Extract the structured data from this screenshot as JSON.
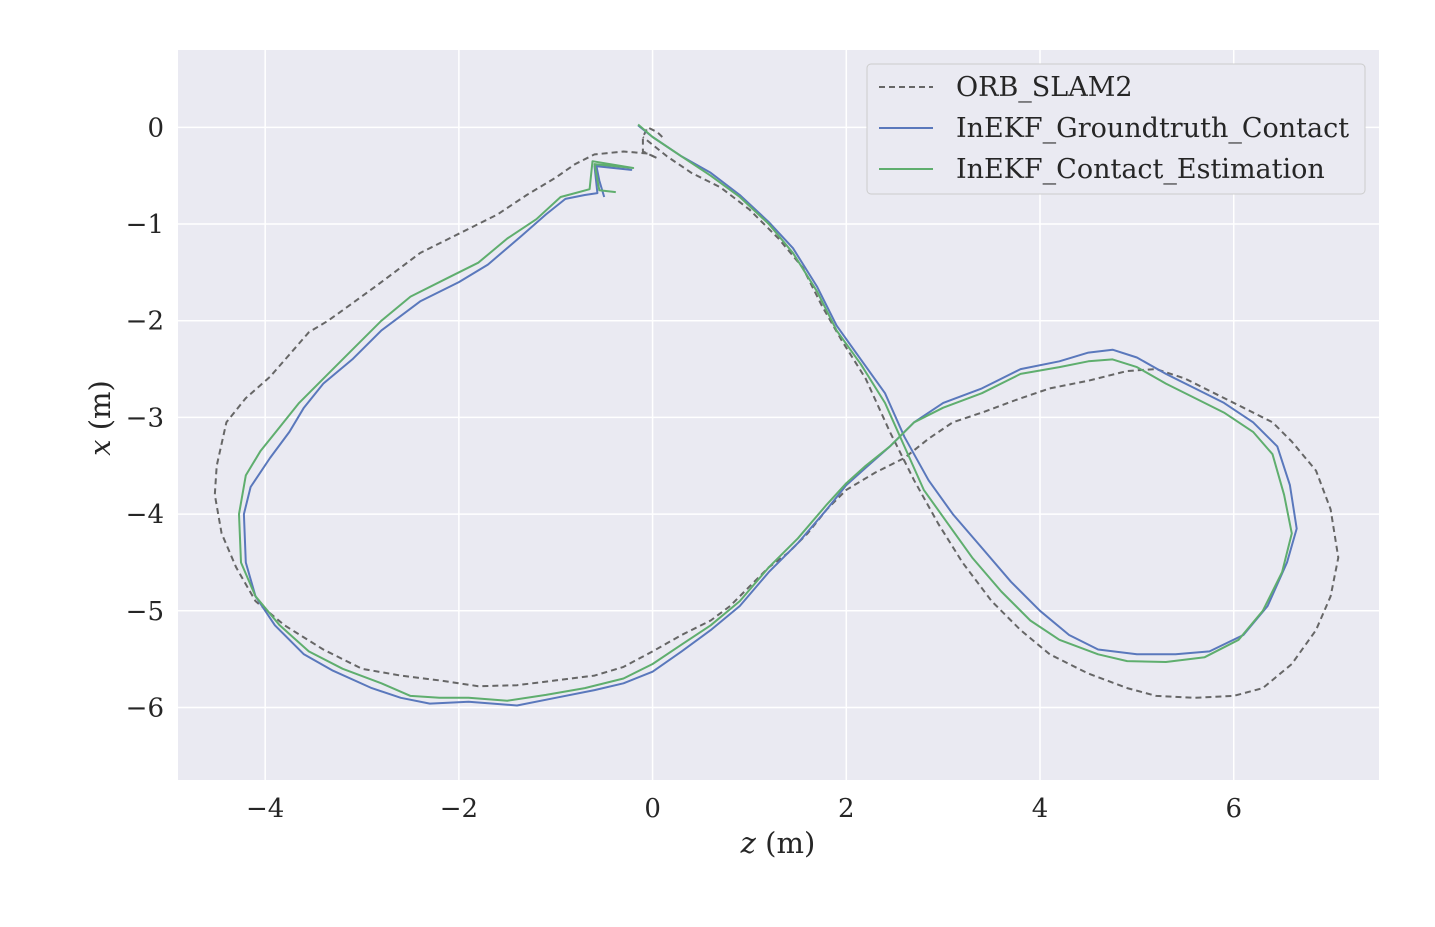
{
  "chart_data": {
    "type": "line",
    "title": "",
    "xlabel_var": "z",
    "xlabel_unit": " (m)",
    "ylabel_var": "x",
    "ylabel_unit": " (m)",
    "xlim": [
      -4.9,
      7.5
    ],
    "ylim": [
      -6.75,
      0.8
    ],
    "xticks": [
      -4,
      -2,
      0,
      2,
      4,
      6
    ],
    "yticks": [
      0,
      -1,
      -2,
      -3,
      -4,
      -5,
      -6
    ],
    "xtick_labels": [
      "−4",
      "−2",
      "0",
      "2",
      "4",
      "6"
    ],
    "ytick_labels": [
      "0",
      "−1",
      "−2",
      "−3",
      "−4",
      "−5",
      "−6"
    ],
    "grid": true,
    "legend_position": "top-right",
    "colors": {
      "background": "#eaeaf2",
      "grid": "#ffffff"
    },
    "series": [
      {
        "name": "ORB_SLAM2",
        "color": "#666666",
        "style": "dashed",
        "points": [
          [
            0.1,
            -0.1
          ],
          [
            0.05,
            -0.05
          ],
          [
            -0.05,
            0
          ],
          [
            -0.1,
            -0.1
          ],
          [
            -0.1,
            -0.25
          ],
          [
            0.05,
            -0.32
          ],
          [
            -0.05,
            -0.27
          ],
          [
            -0.3,
            -0.25
          ],
          [
            -0.6,
            -0.28
          ],
          [
            -0.8,
            -0.38
          ],
          [
            -1.0,
            -0.52
          ],
          [
            -1.3,
            -0.7
          ],
          [
            -1.6,
            -0.9
          ],
          [
            -2.0,
            -1.1
          ],
          [
            -2.4,
            -1.3
          ],
          [
            -2.8,
            -1.6
          ],
          [
            -3.1,
            -1.82
          ],
          [
            -3.35,
            -2.0
          ],
          [
            -3.55,
            -2.12
          ],
          [
            -3.75,
            -2.35
          ],
          [
            -3.95,
            -2.58
          ],
          [
            -4.2,
            -2.8
          ],
          [
            -4.4,
            -3.05
          ],
          [
            -4.5,
            -3.5
          ],
          [
            -4.52,
            -3.8
          ],
          [
            -4.45,
            -4.2
          ],
          [
            -4.3,
            -4.55
          ],
          [
            -4.1,
            -4.9
          ],
          [
            -3.8,
            -5.15
          ],
          [
            -3.4,
            -5.4
          ],
          [
            -3.0,
            -5.6
          ],
          [
            -2.6,
            -5.67
          ],
          [
            -2.2,
            -5.72
          ],
          [
            -1.8,
            -5.78
          ],
          [
            -1.4,
            -5.77
          ],
          [
            -1.0,
            -5.72
          ],
          [
            -0.6,
            -5.67
          ],
          [
            -0.3,
            -5.58
          ],
          [
            0.0,
            -5.42
          ],
          [
            0.3,
            -5.25
          ],
          [
            0.6,
            -5.1
          ],
          [
            0.8,
            -4.95
          ],
          [
            1.0,
            -4.75
          ],
          [
            1.2,
            -4.55
          ],
          [
            1.4,
            -4.4
          ],
          [
            1.6,
            -4.2
          ],
          [
            1.8,
            -3.95
          ],
          [
            2.0,
            -3.75
          ],
          [
            2.3,
            -3.57
          ],
          [
            2.6,
            -3.42
          ],
          [
            2.85,
            -3.22
          ],
          [
            3.1,
            -3.05
          ],
          [
            3.4,
            -2.95
          ],
          [
            3.75,
            -2.82
          ],
          [
            4.1,
            -2.7
          ],
          [
            4.5,
            -2.62
          ],
          [
            4.9,
            -2.52
          ],
          [
            5.2,
            -2.5
          ],
          [
            5.5,
            -2.6
          ],
          [
            5.8,
            -2.75
          ],
          [
            6.1,
            -2.9
          ],
          [
            6.4,
            -3.05
          ],
          [
            6.6,
            -3.25
          ],
          [
            6.85,
            -3.55
          ],
          [
            7.0,
            -3.95
          ],
          [
            7.08,
            -4.45
          ],
          [
            7.0,
            -4.85
          ],
          [
            6.85,
            -5.2
          ],
          [
            6.6,
            -5.55
          ],
          [
            6.3,
            -5.8
          ],
          [
            6.0,
            -5.88
          ],
          [
            5.6,
            -5.9
          ],
          [
            5.2,
            -5.88
          ],
          [
            4.9,
            -5.8
          ],
          [
            4.5,
            -5.65
          ],
          [
            4.1,
            -5.45
          ],
          [
            3.8,
            -5.2
          ],
          [
            3.5,
            -4.9
          ],
          [
            3.2,
            -4.5
          ],
          [
            2.95,
            -4.1
          ],
          [
            2.7,
            -3.65
          ],
          [
            2.45,
            -3.15
          ],
          [
            2.2,
            -2.6
          ],
          [
            1.95,
            -2.2
          ],
          [
            1.75,
            -1.85
          ],
          [
            1.55,
            -1.45
          ],
          [
            1.3,
            -1.15
          ],
          [
            1.0,
            -0.85
          ],
          [
            0.7,
            -0.62
          ],
          [
            0.4,
            -0.47
          ],
          [
            0.15,
            -0.3
          ],
          [
            -0.1,
            -0.1
          ]
        ]
      },
      {
        "name": "InEKF_Groundtruth_Contact",
        "color": "#5a78bc",
        "style": "solid",
        "points": [
          [
            -0.5,
            -0.72
          ],
          [
            -0.55,
            -0.55
          ],
          [
            -0.58,
            -0.4
          ],
          [
            -0.22,
            -0.44
          ],
          [
            -0.6,
            -0.4
          ],
          [
            -0.57,
            -0.68
          ],
          [
            -0.7,
            -0.7
          ],
          [
            -0.9,
            -0.74
          ],
          [
            -1.1,
            -0.9
          ],
          [
            -1.35,
            -1.12
          ],
          [
            -1.7,
            -1.42
          ],
          [
            -2.0,
            -1.6
          ],
          [
            -2.4,
            -1.8
          ],
          [
            -2.8,
            -2.1
          ],
          [
            -3.1,
            -2.4
          ],
          [
            -3.4,
            -2.65
          ],
          [
            -3.6,
            -2.9
          ],
          [
            -3.75,
            -3.15
          ],
          [
            -3.95,
            -3.42
          ],
          [
            -4.15,
            -3.72
          ],
          [
            -4.22,
            -4.0
          ],
          [
            -4.2,
            -4.5
          ],
          [
            -4.1,
            -4.85
          ],
          [
            -3.9,
            -5.15
          ],
          [
            -3.6,
            -5.45
          ],
          [
            -3.3,
            -5.62
          ],
          [
            -2.9,
            -5.8
          ],
          [
            -2.6,
            -5.9
          ],
          [
            -2.3,
            -5.96
          ],
          [
            -1.9,
            -5.94
          ],
          [
            -1.4,
            -5.98
          ],
          [
            -1.0,
            -5.9
          ],
          [
            -0.6,
            -5.82
          ],
          [
            -0.3,
            -5.75
          ],
          [
            0.0,
            -5.63
          ],
          [
            0.3,
            -5.42
          ],
          [
            0.6,
            -5.2
          ],
          [
            0.9,
            -4.95
          ],
          [
            1.2,
            -4.6
          ],
          [
            1.5,
            -4.3
          ],
          [
            1.8,
            -3.95
          ],
          [
            2.0,
            -3.7
          ],
          [
            2.2,
            -3.52
          ],
          [
            2.45,
            -3.3
          ],
          [
            2.7,
            -3.05
          ],
          [
            3.0,
            -2.85
          ],
          [
            3.4,
            -2.7
          ],
          [
            3.8,
            -2.5
          ],
          [
            4.2,
            -2.42
          ],
          [
            4.5,
            -2.33
          ],
          [
            4.75,
            -2.3
          ],
          [
            5.0,
            -2.38
          ],
          [
            5.3,
            -2.55
          ],
          [
            5.6,
            -2.7
          ],
          [
            5.9,
            -2.85
          ],
          [
            6.2,
            -3.05
          ],
          [
            6.45,
            -3.3
          ],
          [
            6.58,
            -3.7
          ],
          [
            6.65,
            -4.15
          ],
          [
            6.55,
            -4.5
          ],
          [
            6.35,
            -4.95
          ],
          [
            6.1,
            -5.25
          ],
          [
            5.75,
            -5.42
          ],
          [
            5.4,
            -5.45
          ],
          [
            5.0,
            -5.45
          ],
          [
            4.6,
            -5.4
          ],
          [
            4.3,
            -5.25
          ],
          [
            4.0,
            -5.0
          ],
          [
            3.7,
            -4.7
          ],
          [
            3.4,
            -4.35
          ],
          [
            3.1,
            -4.0
          ],
          [
            2.85,
            -3.65
          ],
          [
            2.6,
            -3.2
          ],
          [
            2.4,
            -2.75
          ],
          [
            2.15,
            -2.4
          ],
          [
            1.9,
            -2.05
          ],
          [
            1.7,
            -1.65
          ],
          [
            1.45,
            -1.25
          ],
          [
            1.2,
            -0.98
          ],
          [
            0.9,
            -0.7
          ],
          [
            0.6,
            -0.47
          ],
          [
            0.3,
            -0.3
          ],
          [
            0.0,
            -0.1
          ],
          [
            -0.15,
            0.02
          ]
        ]
      },
      {
        "name": "InEKF_Contact_Estimation",
        "color": "#5fae6e",
        "style": "solid",
        "points": [
          [
            -0.38,
            -0.67
          ],
          [
            -0.55,
            -0.65
          ],
          [
            -0.6,
            -0.38
          ],
          [
            -0.2,
            -0.42
          ],
          [
            -0.62,
            -0.35
          ],
          [
            -0.65,
            -0.64
          ],
          [
            -0.8,
            -0.68
          ],
          [
            -0.95,
            -0.72
          ],
          [
            -1.2,
            -0.95
          ],
          [
            -1.5,
            -1.15
          ],
          [
            -1.8,
            -1.4
          ],
          [
            -2.1,
            -1.55
          ],
          [
            -2.5,
            -1.75
          ],
          [
            -2.8,
            -2.0
          ],
          [
            -3.1,
            -2.3
          ],
          [
            -3.4,
            -2.6
          ],
          [
            -3.65,
            -2.85
          ],
          [
            -3.85,
            -3.1
          ],
          [
            -4.05,
            -3.35
          ],
          [
            -4.2,
            -3.6
          ],
          [
            -4.27,
            -4.0
          ],
          [
            -4.25,
            -4.5
          ],
          [
            -4.1,
            -4.85
          ],
          [
            -3.85,
            -5.15
          ],
          [
            -3.55,
            -5.42
          ],
          [
            -3.2,
            -5.6
          ],
          [
            -2.8,
            -5.75
          ],
          [
            -2.5,
            -5.88
          ],
          [
            -2.2,
            -5.9
          ],
          [
            -1.9,
            -5.9
          ],
          [
            -1.5,
            -5.93
          ],
          [
            -1.1,
            -5.87
          ],
          [
            -0.7,
            -5.8
          ],
          [
            -0.3,
            -5.7
          ],
          [
            0.0,
            -5.55
          ],
          [
            0.3,
            -5.35
          ],
          [
            0.6,
            -5.15
          ],
          [
            0.9,
            -4.9
          ],
          [
            1.2,
            -4.55
          ],
          [
            1.5,
            -4.25
          ],
          [
            1.8,
            -3.9
          ],
          [
            2.0,
            -3.68
          ],
          [
            2.2,
            -3.5
          ],
          [
            2.45,
            -3.3
          ],
          [
            2.7,
            -3.05
          ],
          [
            3.0,
            -2.9
          ],
          [
            3.4,
            -2.75
          ],
          [
            3.8,
            -2.55
          ],
          [
            4.2,
            -2.48
          ],
          [
            4.5,
            -2.42
          ],
          [
            4.75,
            -2.4
          ],
          [
            5.0,
            -2.48
          ],
          [
            5.3,
            -2.65
          ],
          [
            5.6,
            -2.8
          ],
          [
            5.9,
            -2.95
          ],
          [
            6.2,
            -3.15
          ],
          [
            6.4,
            -3.38
          ],
          [
            6.52,
            -3.8
          ],
          [
            6.6,
            -4.2
          ],
          [
            6.5,
            -4.6
          ],
          [
            6.3,
            -5.0
          ],
          [
            6.05,
            -5.3
          ],
          [
            5.7,
            -5.48
          ],
          [
            5.3,
            -5.53
          ],
          [
            4.9,
            -5.52
          ],
          [
            4.6,
            -5.45
          ],
          [
            4.2,
            -5.3
          ],
          [
            3.9,
            -5.1
          ],
          [
            3.6,
            -4.8
          ],
          [
            3.3,
            -4.45
          ],
          [
            3.05,
            -4.1
          ],
          [
            2.8,
            -3.75
          ],
          [
            2.6,
            -3.3
          ],
          [
            2.4,
            -2.85
          ],
          [
            2.15,
            -2.45
          ],
          [
            1.9,
            -2.1
          ],
          [
            1.7,
            -1.7
          ],
          [
            1.45,
            -1.3
          ],
          [
            1.2,
            -1.0
          ],
          [
            0.9,
            -0.72
          ],
          [
            0.6,
            -0.5
          ],
          [
            0.3,
            -0.3
          ],
          [
            0.0,
            -0.1
          ],
          [
            -0.15,
            0.03
          ]
        ]
      }
    ]
  }
}
